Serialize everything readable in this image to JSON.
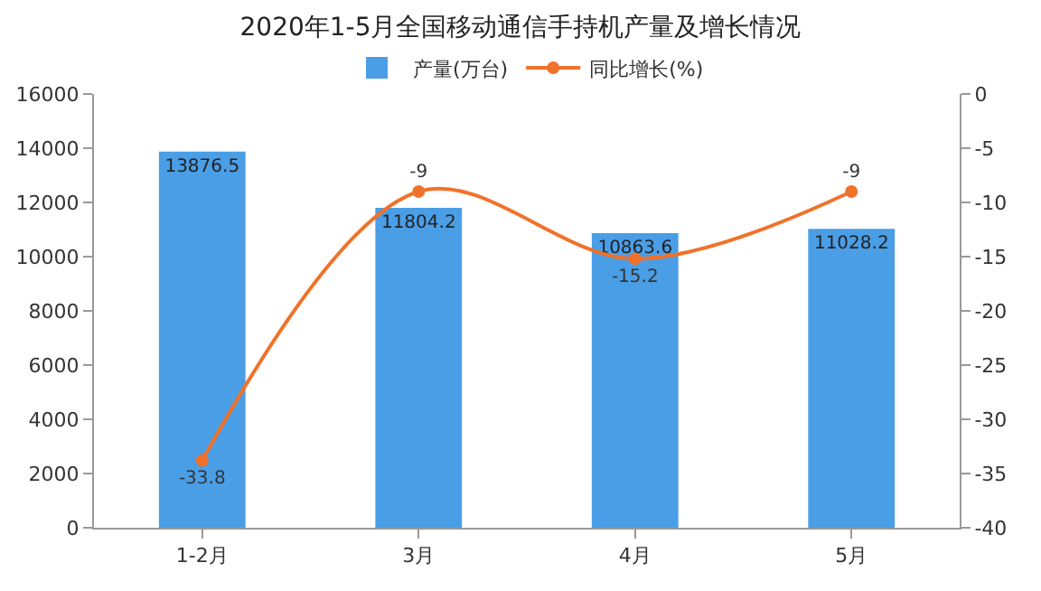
{
  "chart_data": {
    "type": "bar",
    "title": "2020年1-5月全国移动通信手持机产量及增长情况",
    "categories": [
      "1-2月",
      "3月",
      "4月",
      "5月"
    ],
    "series": [
      {
        "name": "产量(万台)",
        "color": "#4a9ee6",
        "values": [
          13876.5,
          11804.2,
          10863.6,
          11028.2
        ]
      },
      {
        "name": "同比增长(%)",
        "type": "line",
        "axis": "y2",
        "color": "#f0722a",
        "marker": "circle",
        "values": [
          -33.8,
          -9,
          -15.2,
          -9
        ]
      }
    ],
    "ylim": [
      0,
      16000
    ],
    "yticks": [
      0,
      2000,
      4000,
      6000,
      8000,
      10000,
      12000,
      14000,
      16000
    ],
    "y2lim": [
      -40,
      0
    ],
    "y2ticks": [
      -40,
      -35,
      -30,
      -25,
      -20,
      -15,
      -10,
      -5,
      0
    ],
    "data_labels": true,
    "grid": false,
    "legend": "top"
  }
}
